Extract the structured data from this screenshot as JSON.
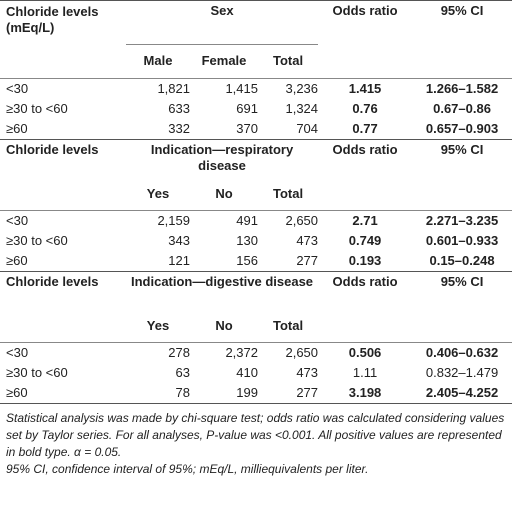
{
  "sections": [
    {
      "header": {
        "col1": "Chloride levels (mEq/L)",
        "group": "Sex",
        "odds": "Odds ratio",
        "ci": "95% CI",
        "sub": [
          "Male",
          "Female",
          "Total"
        ]
      },
      "rows": [
        {
          "label": "<30",
          "v1": "1,821",
          "v2": "1,415",
          "v3": "3,236",
          "or": "1.415",
          "ci": "1.266–1.582",
          "bold": true
        },
        {
          "label": "≥30 to <60",
          "v1": "633",
          "v2": "691",
          "v3": "1,324",
          "or": "0.76",
          "ci": "0.67–0.86",
          "bold": true
        },
        {
          "label": "≥60",
          "v1": "332",
          "v2": "370",
          "v3": "704",
          "or": "0.77",
          "ci": "0.657–0.903",
          "bold": true
        }
      ]
    },
    {
      "header": {
        "col1": "Chloride levels",
        "group": "Indication—respiratory disease",
        "odds": "Odds ratio",
        "ci": "95% CI",
        "sub": [
          "Yes",
          "No",
          "Total"
        ]
      },
      "rows": [
        {
          "label": "<30",
          "v1": "2,159",
          "v2": "491",
          "v3": "2,650",
          "or": "2.71",
          "ci": "2.271–3.235",
          "bold": true
        },
        {
          "label": "≥30 to <60",
          "v1": "343",
          "v2": "130",
          "v3": "473",
          "or": "0.749",
          "ci": "0.601–0.933",
          "bold": true
        },
        {
          "label": "≥60",
          "v1": "121",
          "v2": "156",
          "v3": "277",
          "or": "0.193",
          "ci": "0.15–0.248",
          "bold": true
        }
      ]
    },
    {
      "header": {
        "col1": "Chloride levels",
        "group": "Indication—digestive disease",
        "odds": "Odds ratio",
        "ci": "95% CI",
        "sub": [
          "Yes",
          "No",
          "Total"
        ]
      },
      "rows": [
        {
          "label": "<30",
          "v1": "278",
          "v2": "2,372",
          "v3": "2,650",
          "or": "0.506",
          "ci": "0.406–0.632",
          "bold": true
        },
        {
          "label": "≥30 to <60",
          "v1": "63",
          "v2": "410",
          "v3": "473",
          "or": "1.11",
          "ci": "0.832–1.479",
          "bold": false
        },
        {
          "label": "≥60",
          "v1": "78",
          "v2": "199",
          "v3": "277",
          "or": "3.198",
          "ci": "2.405–4.252",
          "bold": true
        }
      ]
    }
  ],
  "footnotes": {
    "line1": "Statistical analysis was made by chi-square test; odds ratio was calculated considering values set by Taylor series. For all analyses, P-value was <0.001. All positive values are represented in bold type. α = 0.05.",
    "line2": "95% CI, confidence interval of 95%; mEq/L, milliequivalents per liter."
  }
}
